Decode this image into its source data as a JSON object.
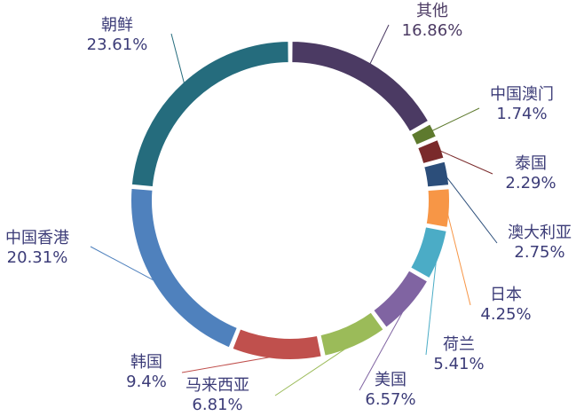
{
  "chart_data": {
    "type": "pie",
    "title": "",
    "slices": [
      {
        "name": "其他",
        "value": 16.86,
        "value_text": "16.86%",
        "color": "#4b3a63",
        "label_color": "#4b3a63",
        "leader_color": "#4b3a63"
      },
      {
        "name": "中国澳门",
        "value": 1.74,
        "value_text": "1.74%",
        "color": "#5e7a2e",
        "label_color": "#3c3c78",
        "leader_color": "#5e7a2e"
      },
      {
        "name": "泰国",
        "value": 2.29,
        "value_text": "2.29%",
        "color": "#7a2a2b",
        "label_color": "#3c3c78",
        "leader_color": "#7a2a2b"
      },
      {
        "name": "澳大利亚",
        "value": 2.75,
        "value_text": "2.75%",
        "color": "#2c4e7a",
        "label_color": "#3c3c78",
        "leader_color": "#2c4e7a"
      },
      {
        "name": "日本",
        "value": 4.25,
        "value_text": "4.25%",
        "color": "#f79646",
        "label_color": "#3c3c78",
        "leader_color": "#f79646"
      },
      {
        "name": "荷兰",
        "value": 5.41,
        "value_text": "5.41%",
        "color": "#4bacc6",
        "label_color": "#3c3c78",
        "leader_color": "#4bacc6"
      },
      {
        "name": "美国",
        "value": 6.57,
        "value_text": "6.57%",
        "color": "#8064a2",
        "label_color": "#3c3c78",
        "leader_color": "#8064a2"
      },
      {
        "name": "马来西亚",
        "value": 6.81,
        "value_text": "6.81%",
        "color": "#9bbb59",
        "label_color": "#3c3c78",
        "leader_color": "#9bbb59"
      },
      {
        "name": "韩国",
        "value": 9.4,
        "value_text": "9.4%",
        "color": "#c0504d",
        "label_color": "#3c3c78",
        "leader_color": "#c0504d"
      },
      {
        "name": "中国香港",
        "value": 20.31,
        "value_text": "20.31%",
        "color": "#4f81bd",
        "label_color": "#3c3c78",
        "leader_color": "#4f81bd"
      },
      {
        "name": "朝鲜",
        "value": 23.61,
        "value_text": "23.61%",
        "color": "#256c7d",
        "label_color": "#3c3c78",
        "leader_color": "#256c7d"
      }
    ],
    "legend": "none"
  }
}
